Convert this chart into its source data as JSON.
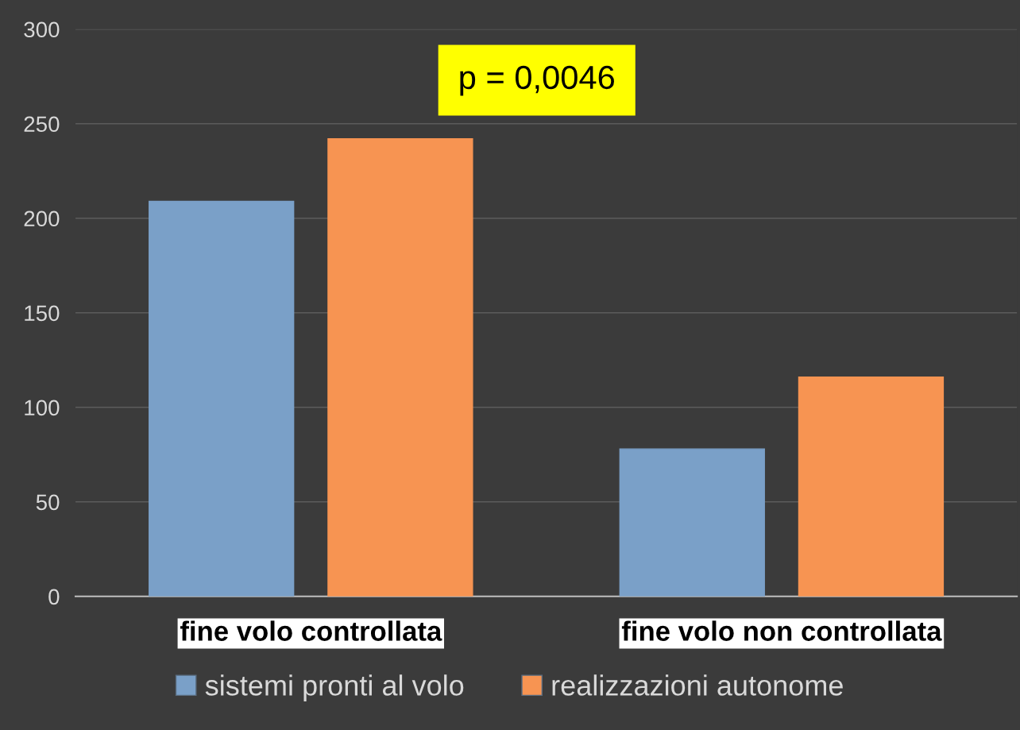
{
  "chart_data": {
    "type": "bar",
    "categories": [
      "fine volo controllata",
      "fine volo non controllata"
    ],
    "series": [
      {
        "name": "sistemi pronti al volo",
        "color": "#7aa0c8",
        "values": [
          209,
          78
        ]
      },
      {
        "name": "realizzazioni autonome",
        "color": "#f79452",
        "values": [
          242,
          116
        ]
      }
    ],
    "ylim": [
      0,
      300
    ],
    "yticks": [
      0,
      50,
      100,
      150,
      200,
      250,
      300
    ],
    "grid": "y",
    "legend": "bottom",
    "annotations": [
      "p = 0,0046"
    ]
  }
}
